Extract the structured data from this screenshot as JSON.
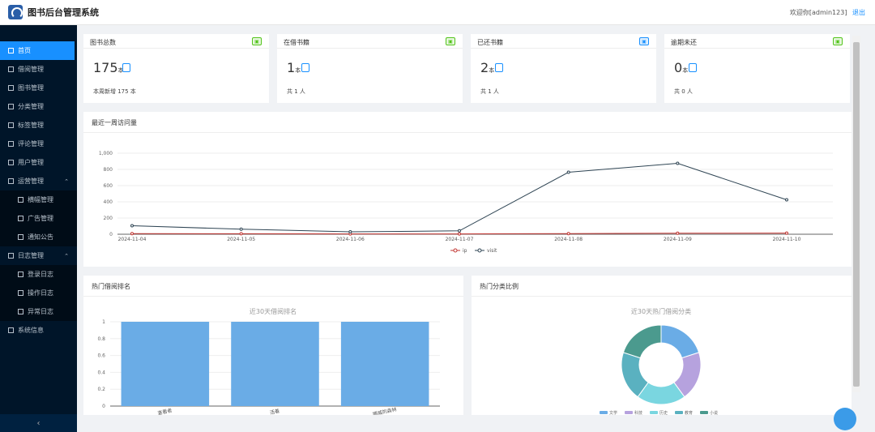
{
  "header": {
    "title": "图书后台管理系统",
    "welcome": "欢迎你[admin123]",
    "logout": "退出"
  },
  "sidebar": {
    "items": [
      {
        "label": "首页",
        "active": true,
        "type": "item"
      },
      {
        "label": "借阅管理",
        "type": "item"
      },
      {
        "label": "图书管理",
        "type": "item"
      },
      {
        "label": "分类管理",
        "type": "item"
      },
      {
        "label": "标签管理",
        "type": "item"
      },
      {
        "label": "评论管理",
        "type": "item"
      },
      {
        "label": "用户管理",
        "type": "item"
      },
      {
        "label": "运营管理",
        "type": "group",
        "expanded": true
      },
      {
        "label": "横幅管理",
        "type": "sub"
      },
      {
        "label": "广告管理",
        "type": "sub"
      },
      {
        "label": "通知公告",
        "type": "sub"
      },
      {
        "label": "日志管理",
        "type": "group",
        "expanded": true
      },
      {
        "label": "登录日志",
        "type": "sub"
      },
      {
        "label": "操作日志",
        "type": "sub"
      },
      {
        "label": "异常日志",
        "type": "sub"
      },
      {
        "label": "系统信息",
        "type": "item"
      }
    ],
    "collapse_icon": "‹"
  },
  "cards": [
    {
      "title": "图书总数",
      "value": "175",
      "unit": "本",
      "foot": "本周新增 175 本",
      "tag_color": "#52c41a"
    },
    {
      "title": "在借书籍",
      "value": "1",
      "unit": "本",
      "foot": "共 1 人",
      "tag_color": "#52c41a"
    },
    {
      "title": "已还书籍",
      "value": "2",
      "unit": "本",
      "foot": "共 1 人",
      "tag_color": "#1890ff"
    },
    {
      "title": "逾期未还",
      "value": "0",
      "unit": "本",
      "foot": "共 0 人",
      "tag_color": "#52c41a"
    }
  ],
  "visits_panel": {
    "title": "最近一周访问量"
  },
  "borrow_panel": {
    "title": "热门借阅排名"
  },
  "category_panel": {
    "title": "热门分类比例"
  },
  "chart_data": [
    {
      "type": "line",
      "x": [
        "2024-11-04",
        "2024-11-05",
        "2024-11-06",
        "2024-11-07",
        "2024-11-08",
        "2024-11-09",
        "2024-11-10"
      ],
      "ylim": [
        0,
        1000
      ],
      "yticks": [
        "1,000",
        "800",
        "600",
        "400",
        "200",
        "0"
      ],
      "series": [
        {
          "name": "ip",
          "values": [
            8,
            6,
            4,
            4,
            8,
            12,
            14
          ],
          "color": "#c23531"
        },
        {
          "name": "visit",
          "values": [
            105,
            62,
            30,
            42,
            765,
            875,
            425
          ],
          "color": "#2f4554"
        }
      ]
    },
    {
      "type": "bar",
      "title": "近30天借阅排名",
      "categories": [
        "查看者",
        "活着",
        "挪威的森林"
      ],
      "values": [
        1,
        1,
        1
      ],
      "ylim": [
        0,
        1
      ],
      "yticks": [
        "1",
        "0.8",
        "0.6",
        "0.4",
        "0.2",
        "0"
      ],
      "color": "#6aace6"
    },
    {
      "type": "pie",
      "title": "近30天热门借阅分类",
      "slices": [
        {
          "name": "文学",
          "value": 1,
          "color": "#6aace6"
        },
        {
          "name": "科技",
          "value": 1,
          "color": "#b6a2de"
        },
        {
          "name": "历史",
          "value": 1,
          "color": "#7ad6e0"
        },
        {
          "name": "教育",
          "value": 1,
          "color": "#5ab1c0"
        },
        {
          "name": "小说",
          "value": 1,
          "color": "#4b9a8e"
        }
      ]
    }
  ]
}
